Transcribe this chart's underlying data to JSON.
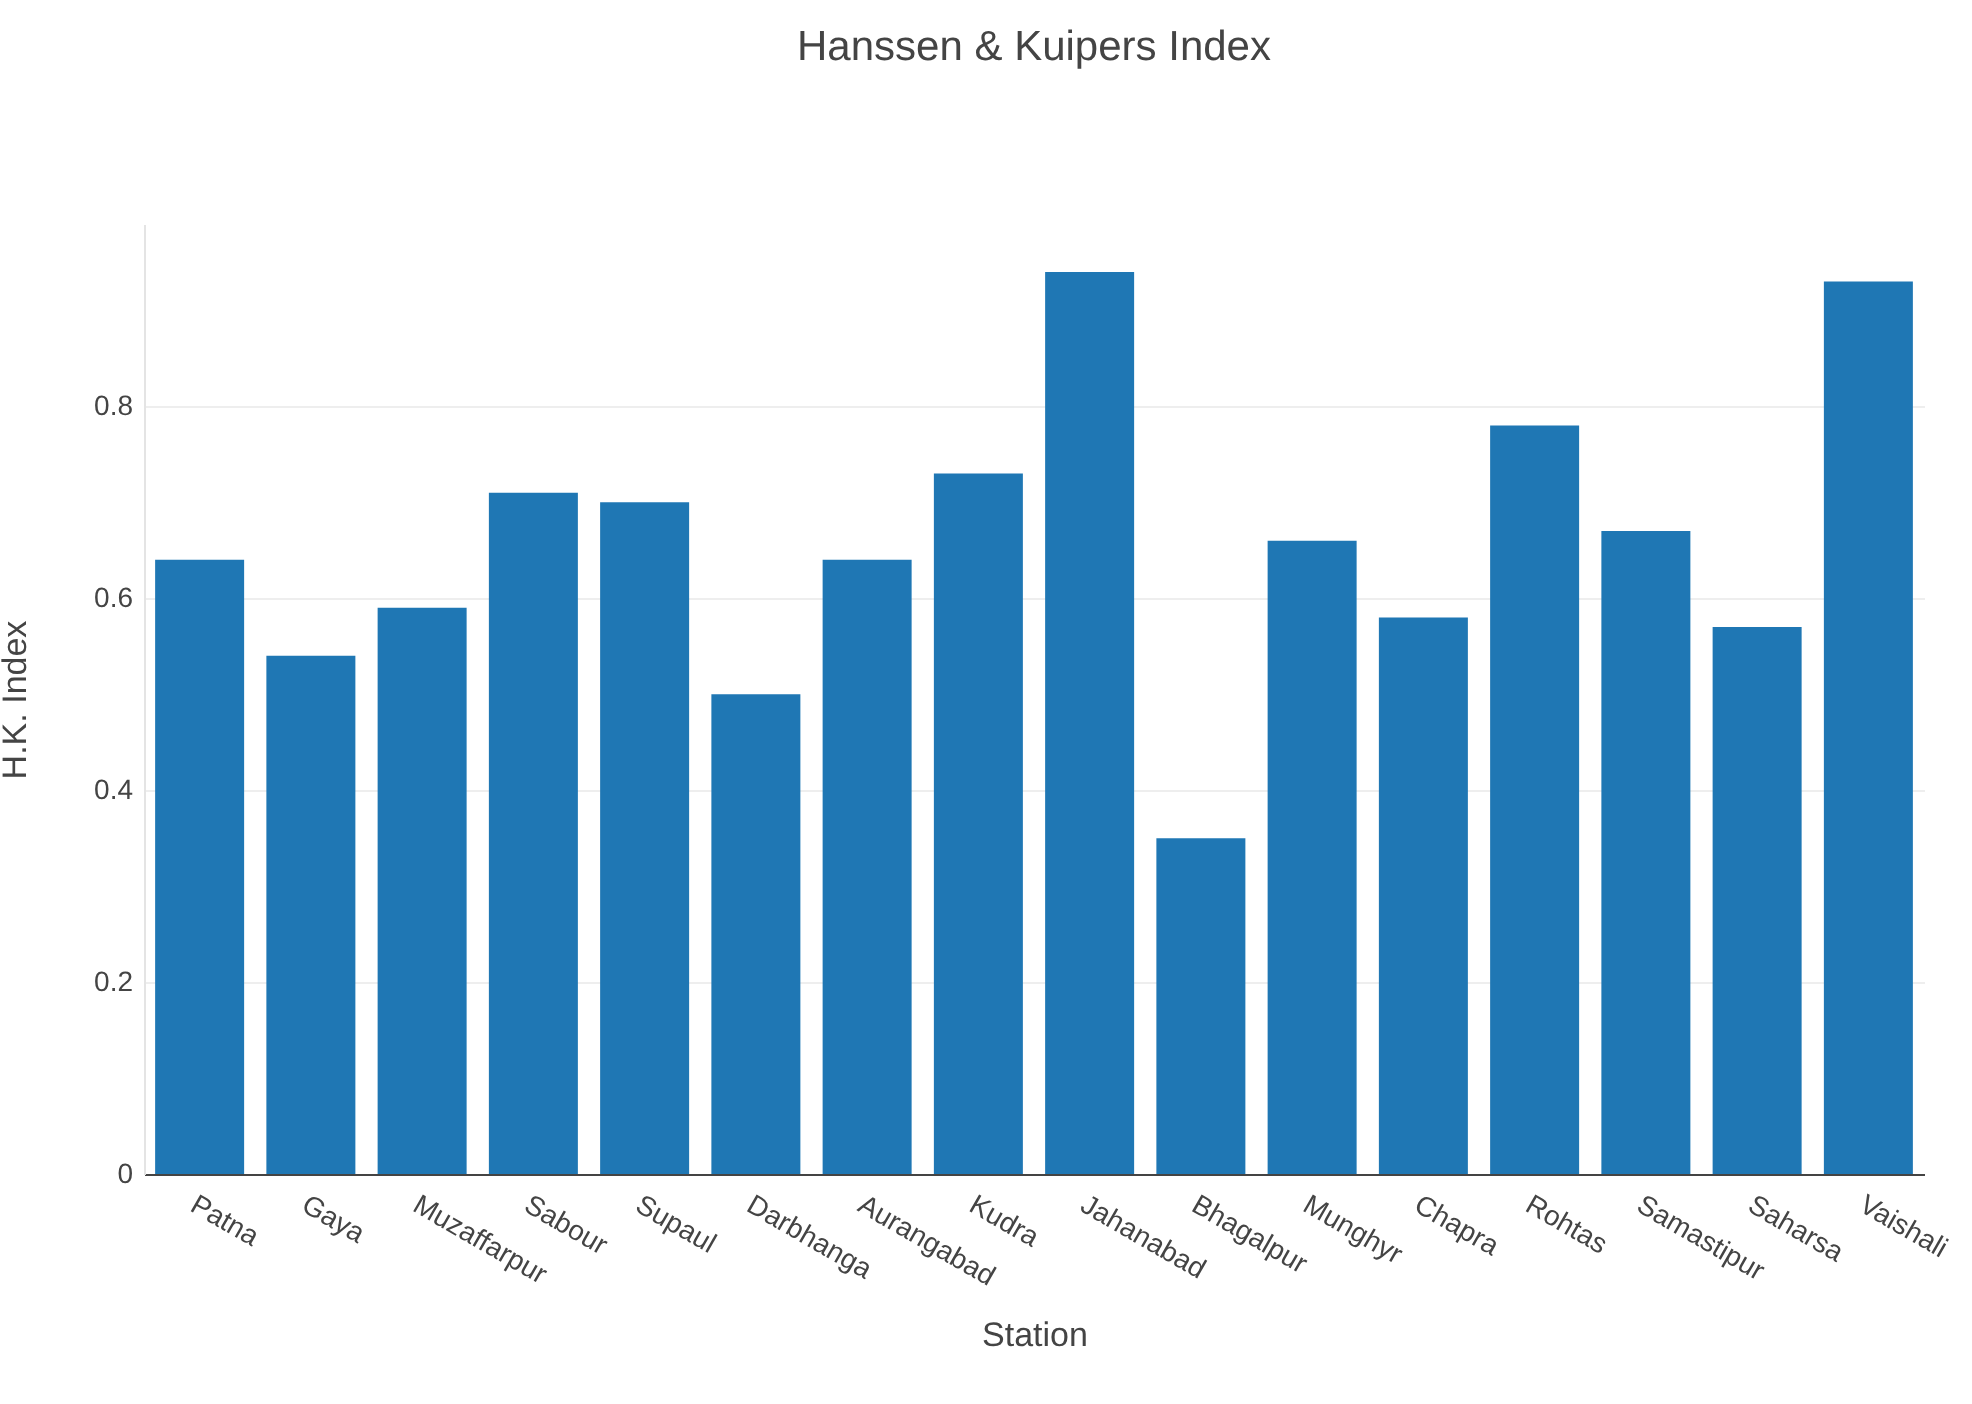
{
  "chart_data": {
    "type": "bar",
    "title": "Hanssen & Kuipers Index",
    "xlabel": "Station",
    "ylabel": "H.K. Index",
    "categories": [
      "Patna",
      "Gaya",
      "Muzaffarpur",
      "Sabour",
      "Supaul",
      "Darbhanga",
      "Aurangabad",
      "Kudra",
      "Jahanabad",
      "Bhagalpur",
      "Munghyr",
      "Chapra",
      "Rohtas",
      "Samastipur",
      "Saharsa",
      "Vaishali"
    ],
    "values": [
      0.64,
      0.54,
      0.59,
      0.71,
      0.7,
      0.5,
      0.64,
      0.73,
      0.94,
      0.35,
      0.66,
      0.58,
      0.78,
      0.67,
      0.57,
      0.93
    ],
    "color": "#1f77b4",
    "ylim": [
      0,
      0.99
    ],
    "yticks": [
      0,
      0.2,
      0.4,
      0.6,
      0.8
    ],
    "grid": "y"
  }
}
